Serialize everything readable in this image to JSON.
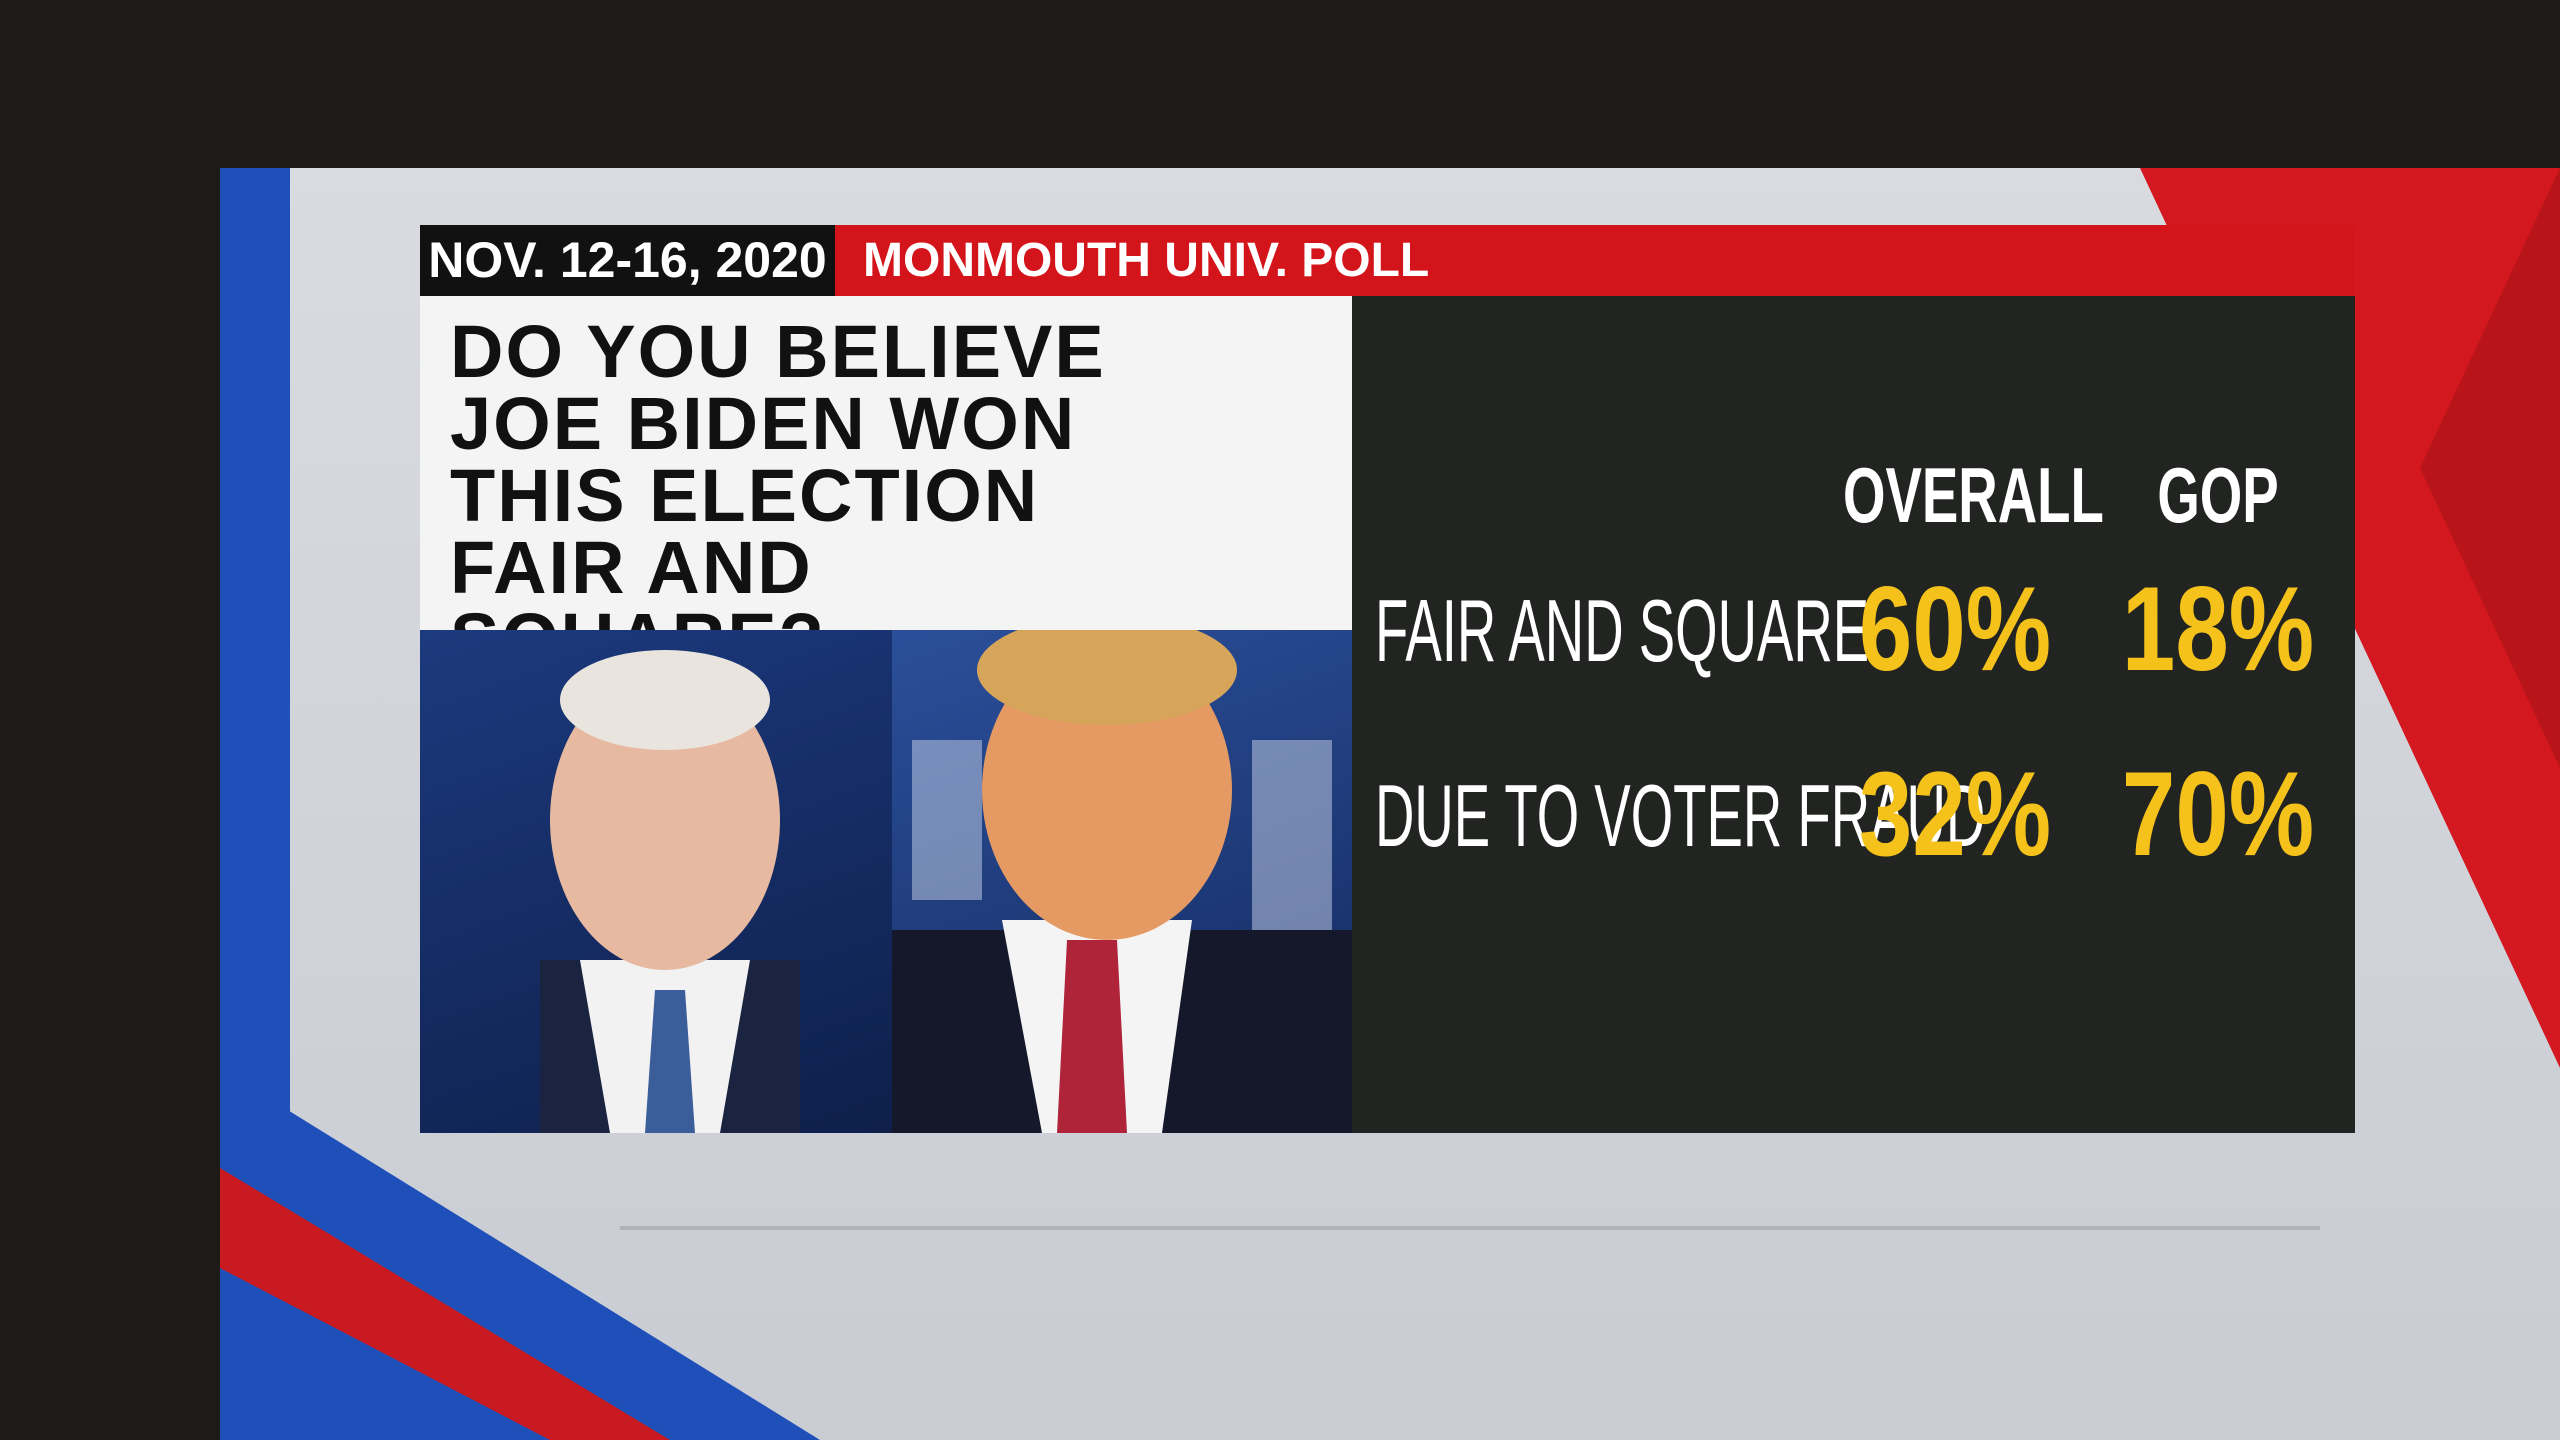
{
  "header": {
    "date": "NOV. 12-16, 2020",
    "source": "MONMOUTH UNIV. POLL"
  },
  "question": "DO YOU BELIEVE JOE BIDEN WON THIS ELECTION FAIR AND SQUARE?",
  "table": {
    "columns": [
      "OVERALL",
      "GOP"
    ],
    "rows": [
      {
        "label": "FAIR AND SQUARE",
        "values": [
          "60%",
          "18%"
        ]
      },
      {
        "label": "DUE TO VOTER FRAUD",
        "values": [
          "32%",
          "70%"
        ]
      }
    ]
  }
}
